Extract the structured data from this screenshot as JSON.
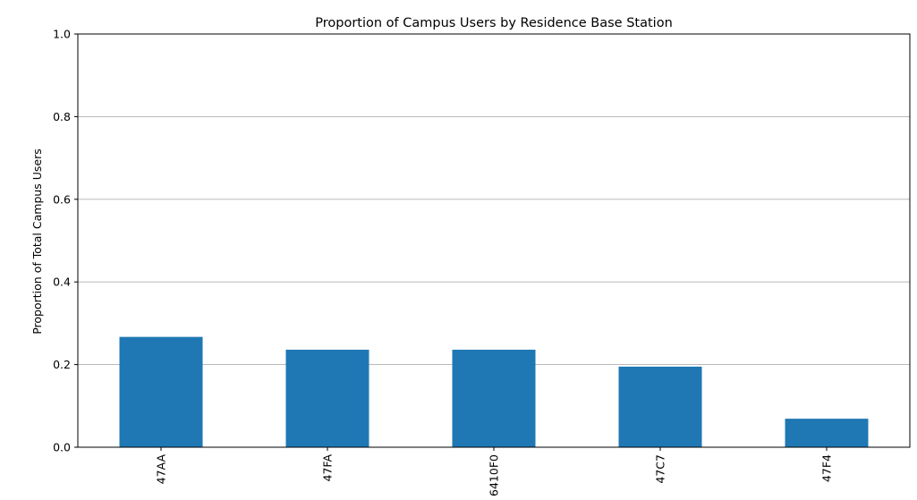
{
  "chart_data": {
    "type": "bar",
    "title": "Proportion of Campus Users by Residence Base Station",
    "xlabel": "",
    "ylabel": "Proportion of Total Campus Users",
    "categories": [
      "47AA",
      "47FA",
      "6410F0",
      "47C7",
      "47F4"
    ],
    "values": [
      0.267,
      0.236,
      0.236,
      0.195,
      0.069
    ],
    "ylim": [
      0,
      1.0
    ],
    "yticks": [
      "0.0",
      "0.2",
      "0.4",
      "0.6",
      "0.8",
      "1.0"
    ],
    "grid": "y",
    "bar_color": "#1f77b4"
  }
}
